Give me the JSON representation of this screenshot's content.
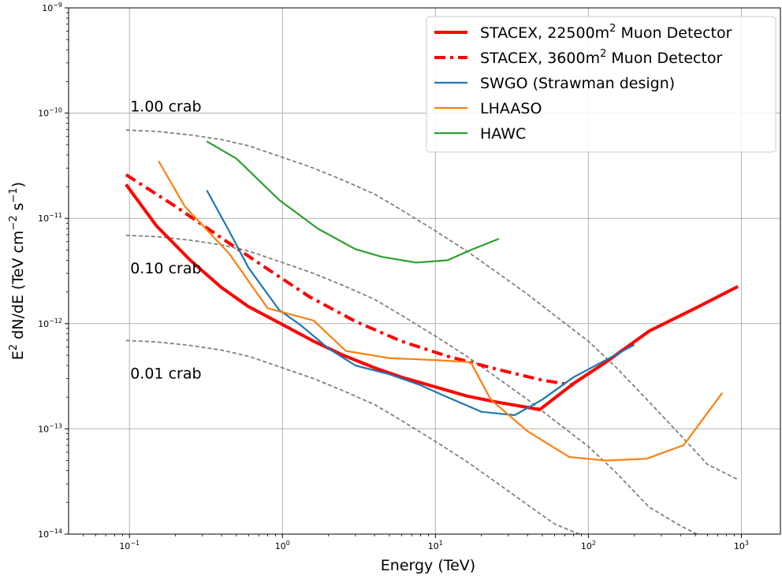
{
  "chart_data": {
    "type": "line",
    "xlabel": "Energy (TeV)",
    "ylabel_main": "E",
    "ylabel_sup": "2",
    "ylabel_rest1": " dN/dE (TeV cm",
    "ylabel_sup2": "−2",
    "ylabel_rest2": " s",
    "ylabel_sup3": "−1",
    "ylabel_rest3": ")",
    "x_scale": "log",
    "y_scale": "log",
    "xlim": [
      0.04,
      1800
    ],
    "ylim": [
      1e-14,
      1e-09
    ],
    "grid": true,
    "legend_position": "upper-right",
    "x_ticks": [
      {
        "value": 0.1,
        "base": "10",
        "exp": "−1"
      },
      {
        "value": 1,
        "base": "10",
        "exp": "0"
      },
      {
        "value": 10,
        "base": "10",
        "exp": "1"
      },
      {
        "value": 100,
        "base": "10",
        "exp": "2"
      },
      {
        "value": 1000,
        "base": "10",
        "exp": "3"
      }
    ],
    "y_ticks": [
      {
        "value": 1e-14,
        "base": "10",
        "exp": "−14"
      },
      {
        "value": 1e-13,
        "base": "10",
        "exp": "−13"
      },
      {
        "value": 1e-12,
        "base": "10",
        "exp": "−12"
      },
      {
        "value": 1e-11,
        "base": "10",
        "exp": "−11"
      },
      {
        "value": 1e-10,
        "base": "10",
        "exp": "−10"
      },
      {
        "value": 1e-09,
        "base": "10",
        "exp": "−9"
      }
    ],
    "series": [
      {
        "key": "stacex-22500",
        "name_main": "STACEX, 22500m",
        "name_sup": "2",
        "name_rest": " Muon Detector",
        "color": "#ff0000",
        "style": "solid",
        "width": 4,
        "x": [
          0.095,
          0.15,
          0.25,
          0.4,
          0.6,
          1.0,
          1.6,
          2.5,
          4,
          6,
          10,
          16,
          25,
          40,
          48,
          80,
          130,
          250,
          500,
          950
        ],
        "y": [
          2.1e-11,
          8.5e-12,
          4e-12,
          2.2e-12,
          1.45e-12,
          9.8e-13,
          6.8e-13,
          5e-13,
          3.8e-13,
          3.1e-13,
          2.5e-13,
          2.05e-13,
          1.8e-13,
          1.6e-13,
          1.52e-13,
          2.7e-13,
          4.3e-13,
          8.5e-13,
          1.4e-12,
          2.25e-12
        ]
      },
      {
        "key": "stacex-3600",
        "name_main": "STACEX, 3600m",
        "name_sup": "2",
        "name_rest": " Muon Detector",
        "color": "#ff0000",
        "style": "dashdot",
        "width": 4,
        "x": [
          0.095,
          0.2,
          0.4,
          0.8,
          1.5,
          3,
          6,
          12,
          25,
          50,
          80
        ],
        "y": [
          2.6e-11,
          1.3e-11,
          6.5e-12,
          3.3e-12,
          1.8e-12,
          1.05e-12,
          6.8e-13,
          4.9e-13,
          3.7e-13,
          2.9e-13,
          2.6e-13
        ]
      },
      {
        "key": "swgo",
        "name_main": "SWGO (Strawman design)",
        "name_sup": "",
        "name_rest": "",
        "color": "#1f77b4",
        "style": "solid",
        "width": 2.2,
        "x": [
          0.32,
          0.45,
          0.6,
          0.95,
          1.3,
          2,
          3,
          5,
          8,
          12,
          20,
          33,
          50,
          80,
          130,
          200
        ],
        "y": [
          1.85e-11,
          7.5e-12,
          3.4e-12,
          1.35e-12,
          9.8e-13,
          5.8e-13,
          4e-13,
          3.3e-13,
          2.6e-13,
          2e-13,
          1.45e-13,
          1.35e-13,
          1.9e-13,
          3.1e-13,
          4.5e-13,
          6.3e-13
        ]
      },
      {
        "key": "lhaaso",
        "name_main": "LHAASO",
        "name_sup": "",
        "name_rest": "",
        "color": "#ff7f0e",
        "style": "solid",
        "width": 2.2,
        "x": [
          0.155,
          0.23,
          0.45,
          0.8,
          1.6,
          2.6,
          5,
          10,
          17,
          23,
          40,
          75,
          130,
          240,
          420,
          750
        ],
        "y": [
          3.5e-11,
          1.3e-11,
          4.6e-12,
          1.4e-12,
          1.07e-12,
          5.5e-13,
          4.7e-13,
          4.5e-13,
          4.3e-13,
          1.9e-13,
          9.5e-14,
          5.4e-14,
          5e-14,
          5.2e-14,
          7e-14,
          2.2e-13
        ]
      },
      {
        "key": "hawc",
        "name_main": "HAWC",
        "name_sup": "",
        "name_rest": "",
        "color": "#2ca02c",
        "style": "solid",
        "width": 2.2,
        "x": [
          0.32,
          0.5,
          0.95,
          1.7,
          3,
          4.5,
          7.5,
          12,
          17,
          26
        ],
        "y": [
          5.4e-11,
          3.7e-11,
          1.5e-11,
          8e-12,
          5.1e-12,
          4.3e-12,
          3.8e-12,
          4e-12,
          5e-12,
          6.4e-12
        ]
      }
    ],
    "crab_curves": [
      {
        "label": "1.00 crab",
        "label_x": 0.1,
        "label_y": 1e-10,
        "color": "#808080",
        "x": [
          0.095,
          0.15,
          0.25,
          0.4,
          0.6,
          1.0,
          1.6,
          2.5,
          4,
          6,
          10,
          16,
          25,
          40,
          60,
          100,
          150,
          250,
          400,
          600,
          950
        ],
        "y": [
          6.9e-11,
          6.7e-11,
          6.2e-11,
          5.6e-11,
          4.9e-11,
          3.8e-11,
          3e-11,
          2.3e-11,
          1.7e-11,
          1.2e-11,
          7.6e-12,
          4.9e-12,
          3.1e-12,
          1.9e-12,
          1.2e-12,
          6.8e-13,
          3.9e-13,
          1.8e-13,
          8.7e-14,
          4.6e-14,
          3.3e-14
        ]
      },
      {
        "label": "0.10 crab",
        "label_x": 0.1,
        "label_y": 2.9e-12,
        "color": "#808080",
        "x": [
          0.095,
          0.15,
          0.25,
          0.4,
          0.6,
          1.0,
          1.6,
          2.5,
          4,
          6,
          10,
          16,
          25,
          40,
          60,
          100,
          150,
          250,
          400,
          550
        ],
        "y": [
          6.9e-12,
          6.7e-12,
          6.2e-12,
          5.6e-12,
          4.9e-12,
          3.8e-12,
          3e-12,
          2.3e-12,
          1.7e-12,
          1.2e-12,
          7.6e-13,
          4.9e-13,
          3.1e-13,
          1.9e-13,
          1.2e-13,
          6.8e-14,
          3.9e-14,
          1.8e-14,
          1.2e-14,
          9.5e-15
        ]
      },
      {
        "label": "0.01 crab",
        "label_x": 0.1,
        "label_y": 2.9e-13,
        "color": "#808080",
        "x": [
          0.095,
          0.15,
          0.25,
          0.4,
          0.6,
          1.0,
          1.6,
          2.5,
          4,
          6,
          10,
          16,
          25,
          40,
          60,
          95
        ],
        "y": [
          6.9e-13,
          6.7e-13,
          6.2e-13,
          5.6e-13,
          4.9e-13,
          3.8e-13,
          3e-13,
          2.3e-13,
          1.7e-13,
          1.2e-13,
          7.6e-14,
          4.9e-14,
          3.1e-14,
          1.9e-14,
          1.25e-14,
          9.5e-15
        ]
      }
    ]
  }
}
